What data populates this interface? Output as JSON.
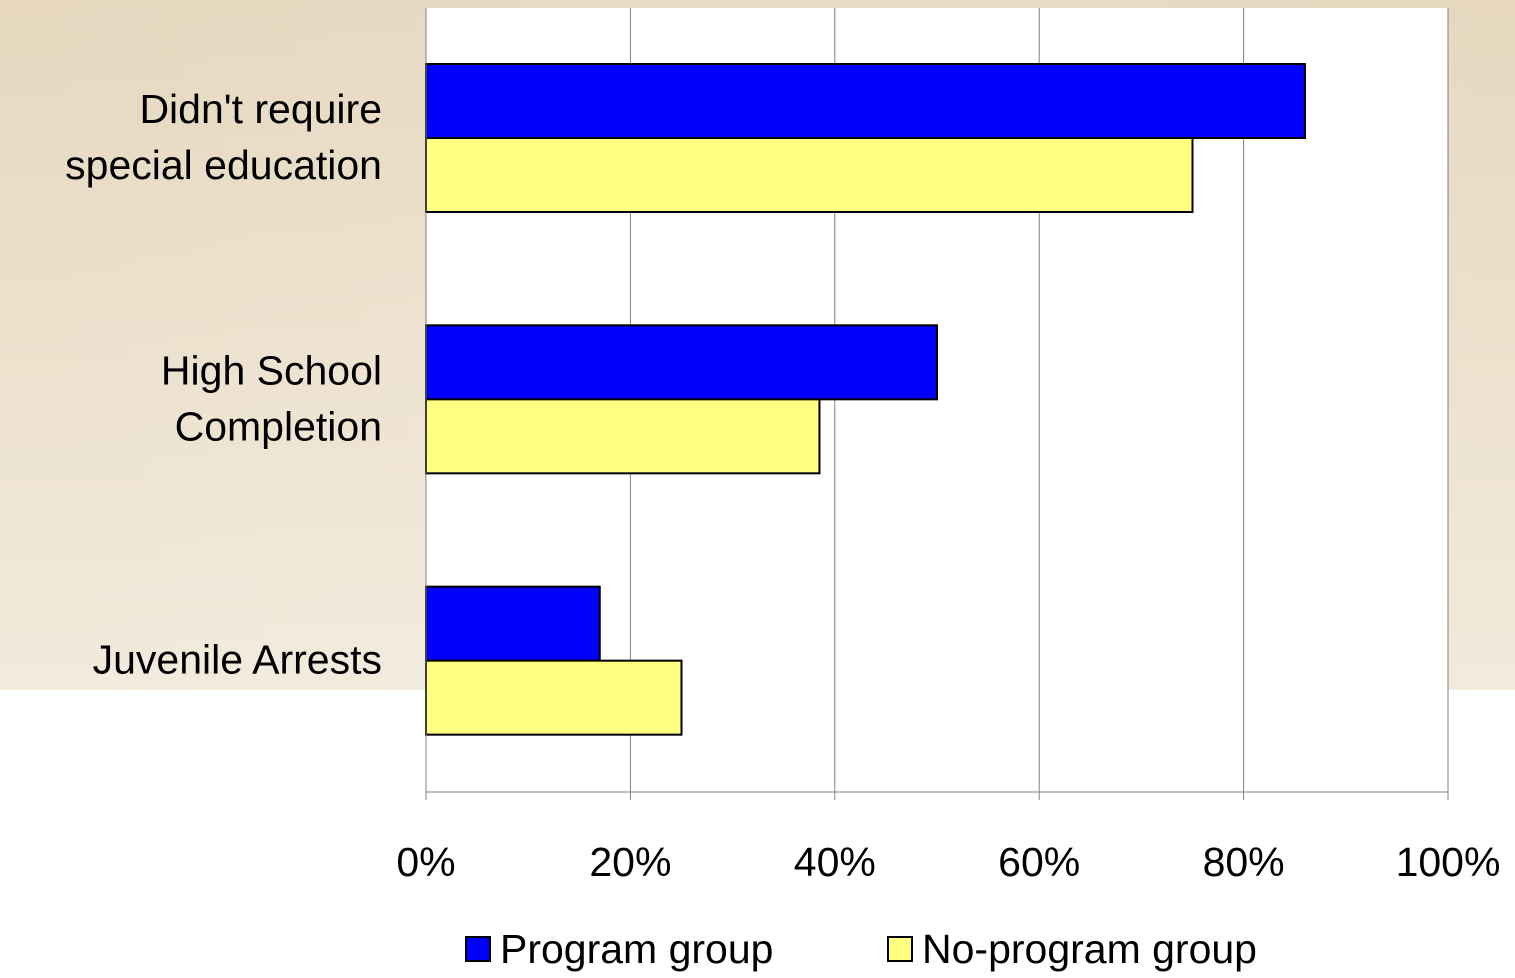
{
  "chart_data": {
    "type": "bar",
    "orientation": "horizontal",
    "categories": [
      [
        "Didn't require",
        "special education"
      ],
      [
        "High School",
        "Completion"
      ],
      [
        "Juvenile Arrests"
      ]
    ],
    "series": [
      {
        "name": "Program group",
        "values": [
          86,
          50,
          17
        ],
        "color": "#0000ff"
      },
      {
        "name": "No-program group",
        "values": [
          75,
          38.5,
          25
        ],
        "color": "#ffff80"
      }
    ],
    "xlim": [
      0,
      100
    ],
    "ticks": [
      0,
      20,
      40,
      60,
      80,
      100
    ],
    "tick_labels": [
      "0%",
      "20%",
      "40%",
      "60%",
      "80%",
      "100%"
    ],
    "grid": "vertical",
    "legend": "bottom"
  }
}
